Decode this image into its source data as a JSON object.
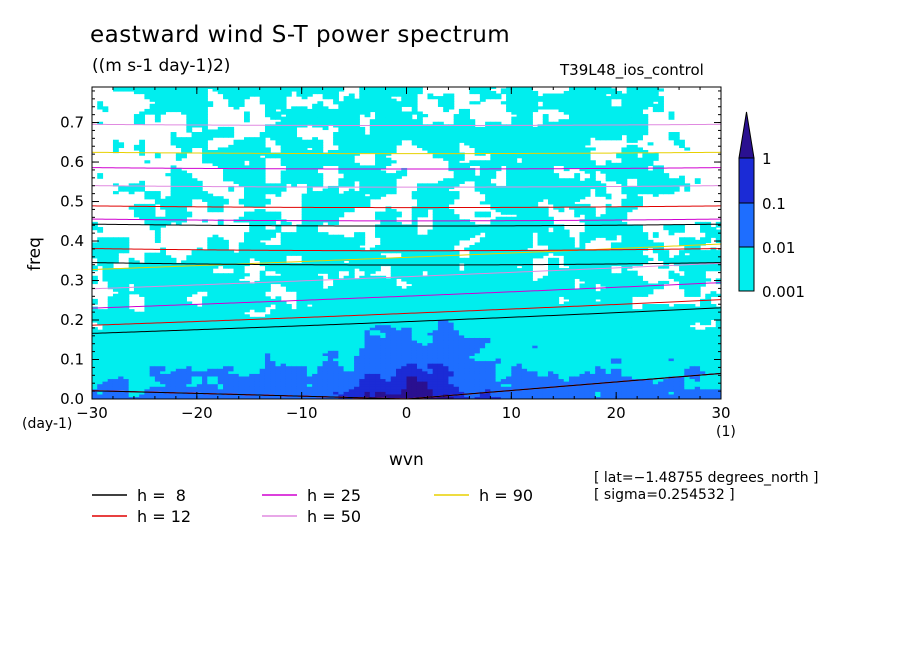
{
  "chart_data": {
    "type": "heatmap",
    "title": "eastward wind S-T power spectrum",
    "units": "((m s-1 day-1)2)",
    "run_label": "T39L48_ios_control",
    "xlabel": "wvn",
    "ylabel": "freq",
    "x_unit": "(1)",
    "y_unit": "(day-1)",
    "xlim": [
      -30,
      30
    ],
    "ylim": [
      0,
      0.79
    ],
    "x_ticks": [
      -30,
      -20,
      -10,
      0,
      10,
      20,
      30
    ],
    "x_tick_labels": [
      "−30",
      "−20",
      "−10",
      "0",
      "10",
      "20",
      "30"
    ],
    "y_ticks": [
      0,
      0.1,
      0.2,
      0.3,
      0.4,
      0.5,
      0.6,
      0.7
    ],
    "y_tick_labels": [
      "0.0",
      "0.1",
      "0.2",
      "0.3",
      "0.4",
      "0.5",
      "0.6",
      "0.7"
    ],
    "colorbar": {
      "levels": [
        0.001,
        0.01,
        0.1,
        1
      ],
      "labels": [
        "0.001",
        "0.01",
        "0.1",
        "1"
      ],
      "colors": [
        "#00eeee",
        "#1e6eff",
        "#1b2bd6",
        "#2a1090"
      ]
    },
    "dispersion_curves": [
      {
        "name": "h =  8",
        "h": 8,
        "color": "#000000"
      },
      {
        "name": "h = 12",
        "h": 12,
        "color": "#e00000"
      },
      {
        "name": "h = 25",
        "h": 25,
        "color": "#d000d0"
      },
      {
        "name": "h = 50",
        "h": 50,
        "color": "#e08ae0"
      },
      {
        "name": "h = 90",
        "h": 90,
        "color": "#e8d000"
      }
    ],
    "info_lines": [
      "[ lat=−1.48755 degrees_north ]",
      "[ sigma=0.254532 ]"
    ]
  }
}
